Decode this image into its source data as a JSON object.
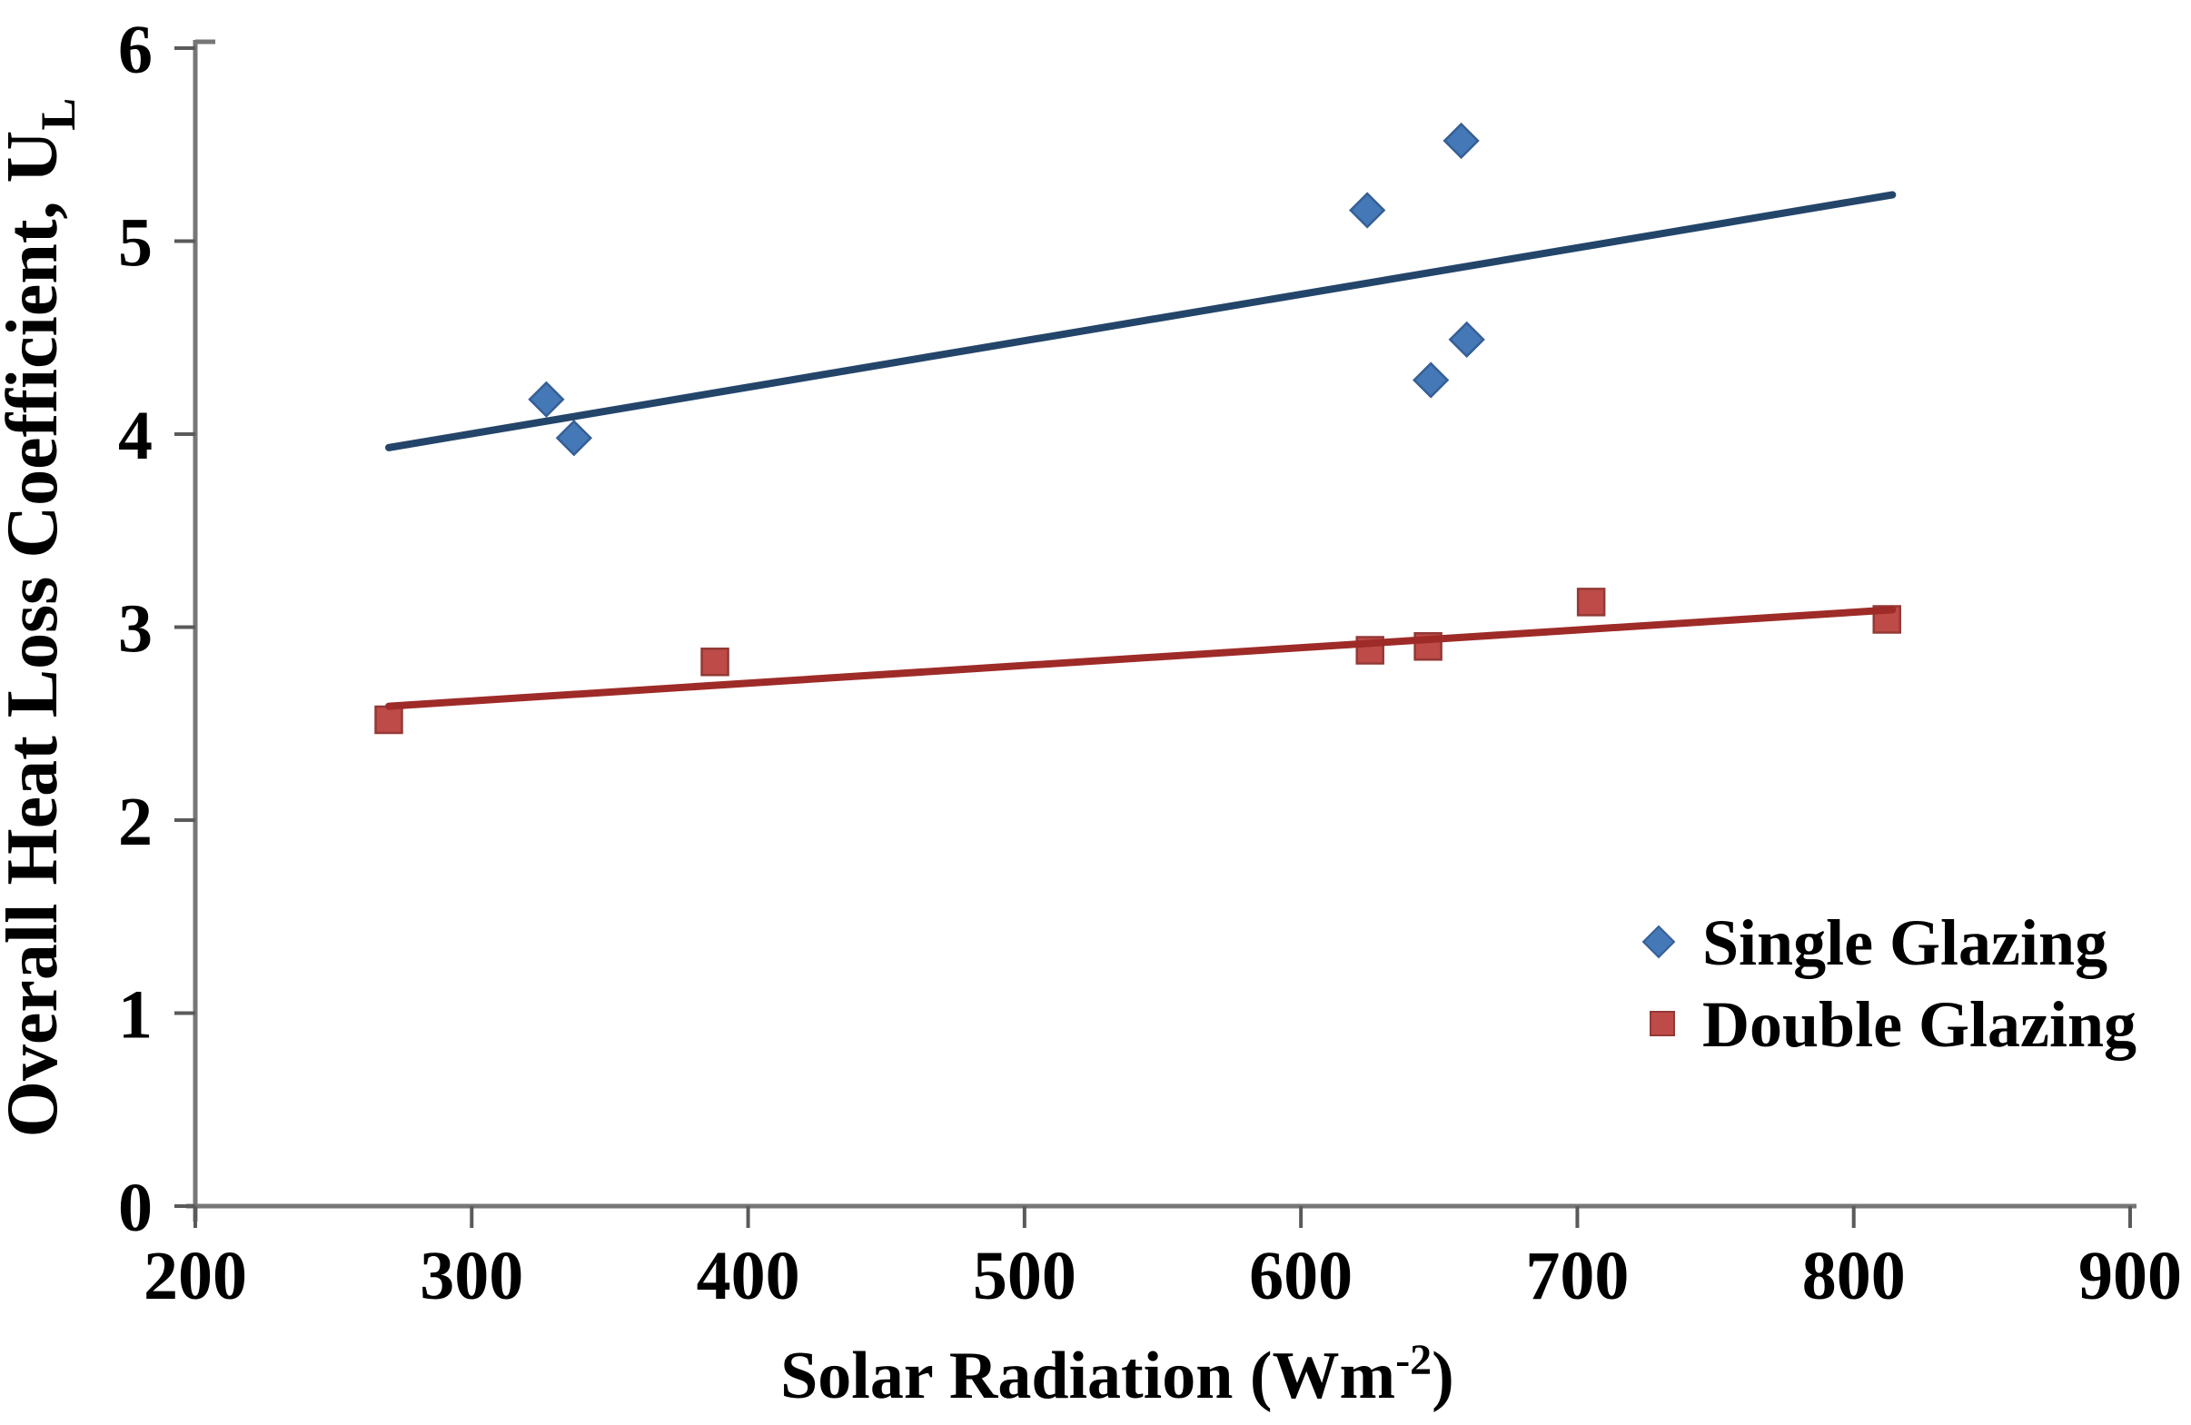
{
  "chart_data": {
    "type": "scatter",
    "title": "",
    "xlabel": {
      "text": "Solar Radiation (Wm",
      "sup": "-2",
      "after": ")"
    },
    "ylabel": {
      "text": "Overall Heat Loss Coefficient, U",
      "sub": "L"
    },
    "xlim": [
      200,
      900
    ],
    "ylim": [
      0,
      6
    ],
    "x_ticks": [
      200,
      300,
      400,
      500,
      600,
      700,
      800,
      900
    ],
    "y_ticks": [
      0,
      1,
      2,
      3,
      4,
      5,
      6
    ],
    "grid": false,
    "legend_position": "inside-right-middle",
    "axis_color": "#767676",
    "tick_color": "#5a5a5a",
    "text_color": "#000000",
    "series": [
      {
        "name": "Single Glazing",
        "marker": "diamond",
        "marker_color": "#4478b6",
        "marker_border": "#365f94",
        "line_color": "#234569",
        "points": [
          [
            327,
            4.18
          ],
          [
            337,
            3.98
          ],
          [
            624,
            5.16
          ],
          [
            647,
            4.28
          ],
          [
            658,
            5.52
          ],
          [
            660,
            4.49
          ]
        ],
        "trendline": {
          "x1": 270,
          "y1": 3.93,
          "x2": 814,
          "y2": 5.24
        }
      },
      {
        "name": "Double Glazing",
        "marker": "square",
        "marker_color": "#be4b48",
        "marker_border": "#933936",
        "line_color": "#9e2b28",
        "points": [
          [
            270,
            2.52
          ],
          [
            388,
            2.82
          ],
          [
            625,
            2.88
          ],
          [
            646,
            2.9
          ],
          [
            705,
            3.13
          ],
          [
            812,
            3.04
          ]
        ],
        "trendline": {
          "x1": 270,
          "y1": 2.59,
          "x2": 814,
          "y2": 3.09
        }
      }
    ]
  }
}
